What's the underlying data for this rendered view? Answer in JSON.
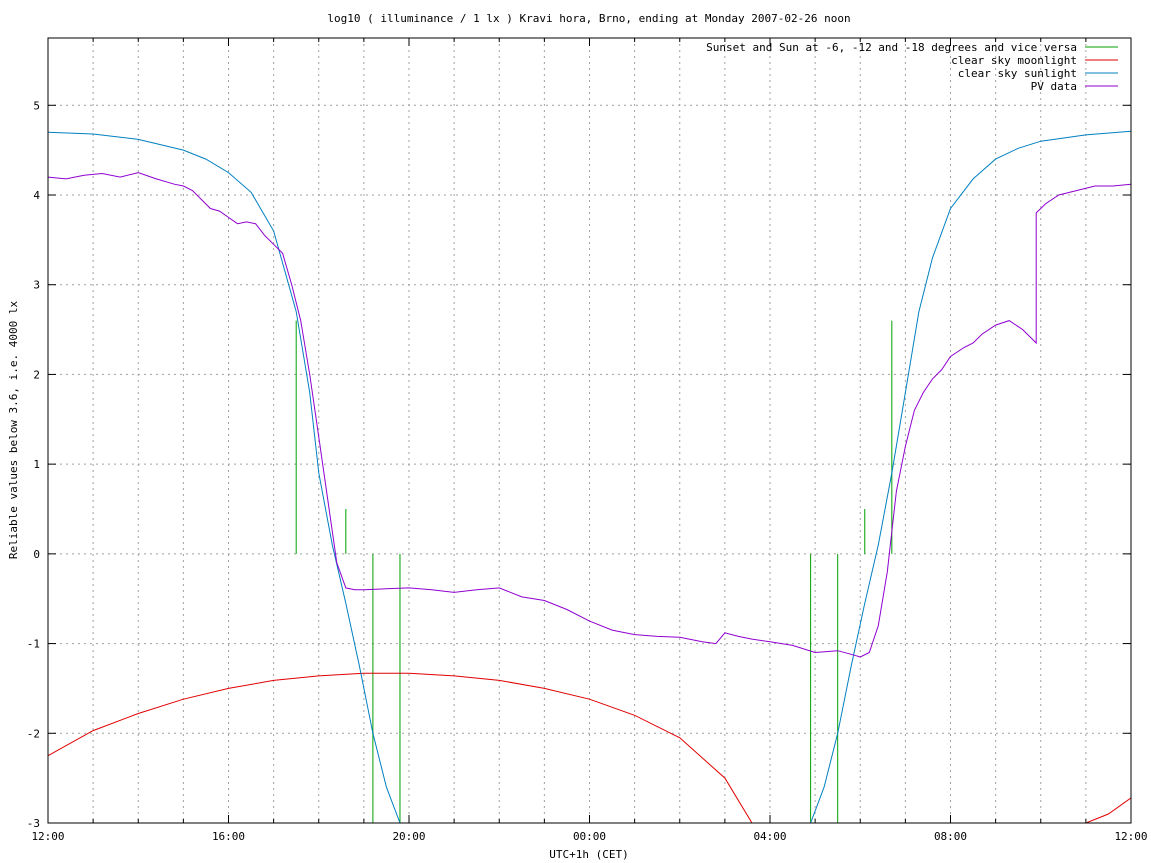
{
  "chart_data": {
    "type": "line",
    "title": "log10 ( illuminance / 1 lx ) Kravi hora, Brno, ending at Monday 2007-02-26 noon",
    "xlabel": "UTC+1h (CET)",
    "ylabel": "Reliable values below 3.6, i.e. 4000 lx",
    "xlim": [
      0,
      24
    ],
    "ylim": [
      -3,
      5.75
    ],
    "x_tick_values": [
      0,
      4,
      8,
      12,
      16,
      20,
      24
    ],
    "x_tick_labels": [
      "12:00",
      "16:00",
      "20:00",
      "00:00",
      "04:00",
      "08:00",
      "12:00"
    ],
    "y_tick_values": [
      -3,
      -2,
      -1,
      0,
      1,
      2,
      3,
      4,
      5
    ],
    "y_tick_labels": [
      "-3",
      "-2",
      "-1",
      "0",
      "1",
      "2",
      "3",
      "4",
      "5"
    ],
    "x_unit_note": "hours after 2007-02-25 12:00 CET",
    "grid": true,
    "legend_position": "top-right",
    "series": [
      {
        "name": "Sunset and Sun at -6, -12 and -18 degrees and vice versa",
        "color": "#00a000",
        "kind": "vlines",
        "segments": [
          {
            "x": 5.5,
            "y0": 0,
            "y1": 2.6
          },
          {
            "x": 6.6,
            "y0": 0,
            "y1": 0.5
          },
          {
            "x": 7.2,
            "y0": -3,
            "y1": 0
          },
          {
            "x": 7.8,
            "y0": -3,
            "y1": 0
          },
          {
            "x": 16.9,
            "y0": -3,
            "y1": 0
          },
          {
            "x": 17.5,
            "y0": -3,
            "y1": 0
          },
          {
            "x": 18.1,
            "y0": 0,
            "y1": 0.5
          },
          {
            "x": 18.7,
            "y0": 0,
            "y1": 2.6
          }
        ]
      },
      {
        "name": "clear sky moonlight",
        "color": "#e00000",
        "x": [
          0,
          1,
          2,
          3,
          4,
          5,
          6,
          7,
          8,
          9,
          10,
          11,
          12,
          13,
          14,
          15,
          15.6,
          16,
          20,
          22,
          23,
          23.5,
          24
        ],
        "y": [
          -2.25,
          -1.97,
          -1.78,
          -1.62,
          -1.5,
          -1.41,
          -1.36,
          -1.33,
          -1.33,
          -1.36,
          -1.41,
          -1.5,
          -1.62,
          -1.8,
          -2.05,
          -2.5,
          -3.0,
          null,
          null,
          null,
          -3.0,
          -2.9,
          -2.72
        ]
      },
      {
        "name": "clear sky sunlight",
        "color": "#0080c0",
        "x": [
          0,
          1,
          2,
          3,
          3.5,
          4,
          4.5,
          5,
          5.5,
          5.8,
          6,
          6.3,
          6.6,
          6.9,
          7.2,
          7.5,
          7.8,
          8,
          16.5,
          16.9,
          17.2,
          17.5,
          17.8,
          18.1,
          18.4,
          18.7,
          19,
          19.3,
          19.6,
          20,
          20.5,
          21,
          21.5,
          22,
          23,
          24
        ],
        "y": [
          4.7,
          4.68,
          4.62,
          4.5,
          4.4,
          4.25,
          4.03,
          3.6,
          2.7,
          1.8,
          0.9,
          0.1,
          -0.55,
          -1.25,
          -2.0,
          -2.6,
          -3.0,
          -3.2,
          -3.2,
          -3.0,
          -2.6,
          -2.0,
          -1.25,
          -0.55,
          0.1,
          0.9,
          1.8,
          2.7,
          3.3,
          3.85,
          4.18,
          4.4,
          4.52,
          4.6,
          4.67,
          4.71
        ]
      },
      {
        "name": "PV data",
        "color": "#9000d0",
        "x": [
          0,
          0.4,
          0.8,
          1.2,
          1.6,
          2,
          2.4,
          2.8,
          3.0,
          3.2,
          3.4,
          3.6,
          3.8,
          4.0,
          4.2,
          4.4,
          4.6,
          4.8,
          5.0,
          5.2,
          5.4,
          5.6,
          5.8,
          6.0,
          6.2,
          6.4,
          6.6,
          6.8,
          7.0,
          7.5,
          8.0,
          8.5,
          9.0,
          9.5,
          10.0,
          10.5,
          11.0,
          11.5,
          12.0,
          12.5,
          13.0,
          13.5,
          14.0,
          14.5,
          14.8,
          15.0,
          15.3,
          15.6,
          16.0,
          16.5,
          17.0,
          17.5,
          17.8,
          18.0,
          18.2,
          18.4,
          18.6,
          18.8,
          19.0,
          19.2,
          19.4,
          19.6,
          19.8,
          20.0,
          20.3,
          20.5,
          20.7,
          21.0,
          21.3,
          21.6,
          21.9,
          21.9,
          22.0,
          22.1,
          22.4,
          22.8,
          23.2,
          23.6,
          24.0
        ],
        "y": [
          4.2,
          4.18,
          4.22,
          4.24,
          4.2,
          4.25,
          4.18,
          4.12,
          4.1,
          4.05,
          3.95,
          3.85,
          3.82,
          3.75,
          3.68,
          3.7,
          3.68,
          3.55,
          3.45,
          3.35,
          3.0,
          2.6,
          2.0,
          1.3,
          0.6,
          -0.1,
          -0.38,
          -0.4,
          -0.4,
          -0.39,
          -0.38,
          -0.4,
          -0.43,
          -0.4,
          -0.38,
          -0.48,
          -0.52,
          -0.62,
          -0.75,
          -0.85,
          -0.9,
          -0.92,
          -0.93,
          -0.98,
          -1.0,
          -0.88,
          -0.92,
          -0.95,
          -0.98,
          -1.02,
          -1.1,
          -1.08,
          -1.12,
          -1.15,
          -1.1,
          -0.8,
          -0.2,
          0.7,
          1.2,
          1.6,
          1.8,
          1.95,
          2.05,
          2.2,
          2.3,
          2.35,
          2.45,
          2.55,
          2.6,
          2.5,
          2.35,
          3.8,
          3.85,
          3.9,
          4.0,
          4.05,
          4.1,
          4.1,
          4.12
        ]
      }
    ]
  }
}
